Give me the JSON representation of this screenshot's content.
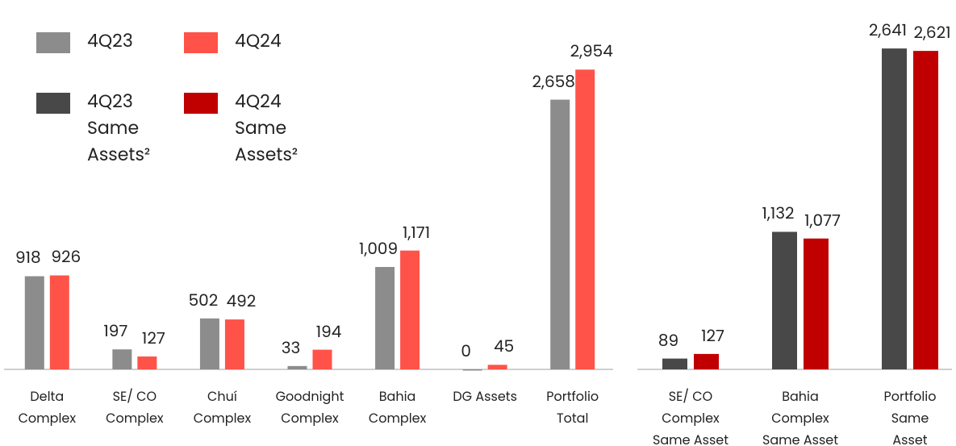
{
  "chart_data": [
    {
      "type": "bar",
      "categories": [
        "Delta\nComplex",
        "SE/ CO\nComplex",
        "Chuí\nComplex",
        "Goodnight\nComplex",
        "Bahia\nComplex",
        "DG Assets",
        "Portfolio\nTotal"
      ],
      "series": [
        {
          "name": "4Q23",
          "color": "#8c8c8c",
          "values": [
            918,
            197,
            502,
            33,
            1009,
            0,
            2658
          ],
          "value_labels": [
            "918",
            "197",
            "502",
            "33",
            "1,009",
            "0",
            "2,658"
          ]
        },
        {
          "name": "4Q24",
          "color": "#ff5349",
          "values": [
            926,
            127,
            492,
            194,
            1171,
            45,
            2954
          ],
          "value_labels": [
            "926",
            "127",
            "492",
            "194",
            "1,171",
            "45",
            "2,954"
          ]
        }
      ],
      "ylim": [
        0,
        3640
      ]
    },
    {
      "type": "bar",
      "categories": [
        "SE/ CO\nComplex\nSame Asset",
        "Bahia\nComplex\nSame Asset",
        "Portfolio\nSame Asset"
      ],
      "series": [
        {
          "name": "4Q23\nSame\nAssets²",
          "color": "#484848",
          "values": [
            89,
            1132,
            2641
          ],
          "value_labels": [
            "89",
            "1,132",
            "2,641"
          ]
        },
        {
          "name": "4Q24\nSame\nAssets²",
          "color": "#c00000",
          "values": [
            127,
            1077,
            2621
          ],
          "value_labels": [
            "127",
            "1,077",
            "2,621"
          ]
        }
      ],
      "ylim": [
        0,
        3040
      ]
    }
  ]
}
